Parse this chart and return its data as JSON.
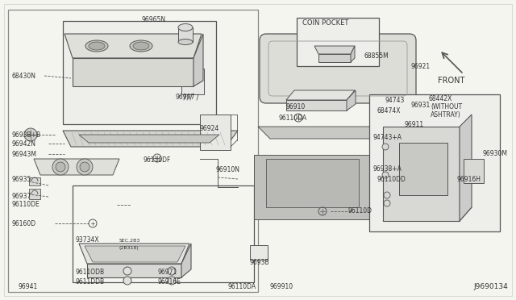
{
  "bg_color": "#f5f5f0",
  "line_color": "#555555",
  "text_color": "#333333",
  "fig_width": 6.4,
  "fig_height": 3.72,
  "dpi": 100,
  "diagram_code": "J9690134",
  "front_label": "FRONT",
  "coin_pocket_label": "COIN POCKET"
}
